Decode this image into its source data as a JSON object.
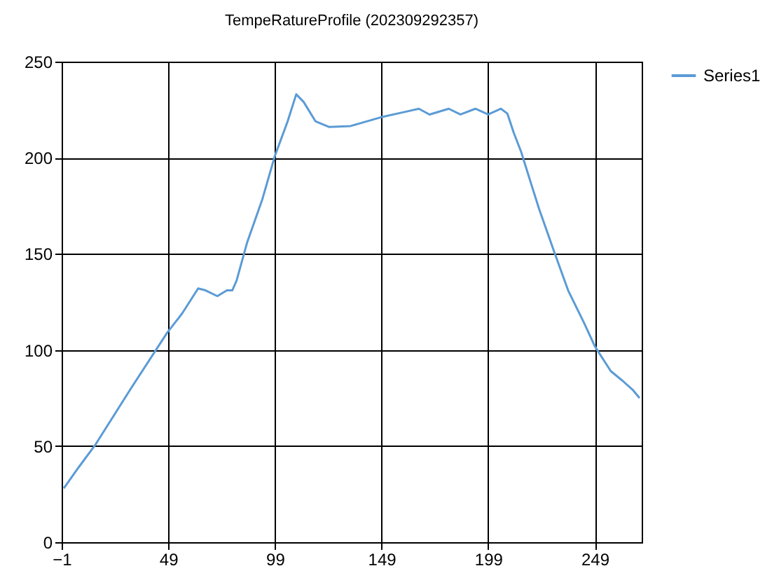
{
  "chart_data": {
    "type": "line",
    "title": "TempeRatureProfile (202309292357)",
    "x": [
      0,
      7,
      15,
      31.5,
      48.5,
      55.5,
      63,
      66.5,
      72,
      76.5,
      79,
      81,
      86,
      93,
      99,
      105,
      109,
      112.5,
      118,
      124.5,
      134.5,
      148.5,
      160.5,
      166.5,
      171.5,
      180.5,
      186,
      193,
      199,
      205,
      208,
      211,
      214.5,
      219,
      223,
      230,
      236.5,
      244,
      249,
      253,
      256.5,
      262,
      267,
      270
    ],
    "series": [
      {
        "name": "Series1",
        "color": "#5b9bd5",
        "values": [
          28,
          39,
          51,
          80,
          109,
          119,
          132,
          131,
          128,
          131,
          131,
          136,
          156,
          178,
          201,
          219,
          233,
          229,
          219,
          216,
          216.5,
          221,
          224,
          225.5,
          222.5,
          225.5,
          222.5,
          225.5,
          222.5,
          225.5,
          223,
          213,
          203,
          187,
          173,
          151,
          131,
          114,
          102,
          95,
          89,
          84,
          79,
          75
        ]
      }
    ],
    "xlim": [
      -1,
      271
    ],
    "xticks": [
      -1,
      49,
      99,
      149,
      199,
      249
    ],
    "ylim": [
      0,
      250
    ],
    "yticks": [
      0,
      50,
      100,
      150,
      200,
      250
    ],
    "grid": true,
    "legend": "top right",
    "marker": "none",
    "line_style": "solid"
  }
}
